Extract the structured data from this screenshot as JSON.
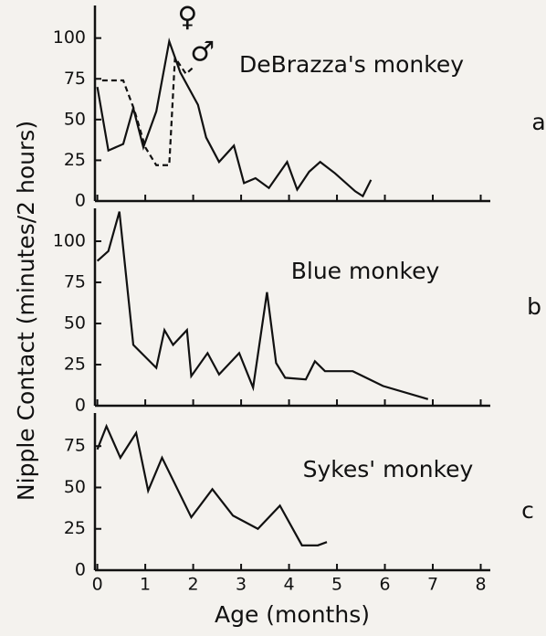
{
  "chart_data": [
    {
      "type": "line",
      "title": "DeBrazza's monkey",
      "panel": "a",
      "xlim": [
        -0.05,
        8.2
      ],
      "xticks": [
        0,
        1,
        2,
        3,
        4,
        5,
        6,
        7,
        8
      ],
      "ylim": [
        0,
        120
      ],
      "yticks": [
        0,
        25,
        50,
        75,
        100
      ],
      "series": [
        {
          "name": "♀",
          "color": "#111",
          "dash": false,
          "x": [
            0,
            0.23,
            0.54,
            0.75,
            0.96,
            1.23,
            1.5,
            1.73,
            2.1,
            2.27,
            2.54,
            2.85,
            3.06,
            3.3,
            3.58,
            3.96,
            4.17,
            4.42,
            4.65,
            4.96,
            5.38,
            5.54,
            5.71
          ],
          "values": [
            70,
            31,
            35,
            57,
            33,
            55,
            98,
            79,
            59,
            39,
            24,
            34,
            11,
            14,
            8,
            24,
            7,
            18,
            24,
            17,
            6,
            3,
            13
          ]
        },
        {
          "name": "♂",
          "color": "#111",
          "dash": true,
          "x": [
            0.1,
            0.54,
            0.77,
            1.0,
            1.23,
            1.5,
            1.62,
            1.85,
            2.0
          ],
          "values": [
            74,
            74,
            56,
            33,
            22,
            22,
            88,
            78,
            82
          ]
        }
      ]
    },
    {
      "type": "line",
      "title": "Blue monkey",
      "panel": "b",
      "ylabel": "Nipple Contact (minutes/2 hours)",
      "xlim": [
        -0.05,
        8.2
      ],
      "xticks": [
        0,
        1,
        2,
        3,
        4,
        5,
        6,
        7,
        8
      ],
      "ylim": [
        0,
        120
      ],
      "yticks": [
        0,
        25,
        50,
        75,
        100
      ],
      "series": [
        {
          "name": null,
          "color": "#111",
          "dash": false,
          "x": [
            0,
            0.23,
            0.46,
            0.75,
            1.23,
            1.4,
            1.58,
            1.87,
            1.96,
            2.3,
            2.54,
            2.96,
            3.25,
            3.54,
            3.73,
            3.92,
            4.35,
            4.54,
            4.75,
            5.33,
            5.96,
            6.9
          ],
          "values": [
            88,
            94,
            118,
            37,
            23,
            46,
            37,
            46,
            18,
            32,
            19,
            32,
            11,
            69,
            26,
            17,
            16,
            27,
            21,
            21,
            12,
            4
          ]
        }
      ]
    },
    {
      "type": "line",
      "title": "Sykes' monkey",
      "panel": "c",
      "xlabel": "Age (months)",
      "xlim": [
        -0.05,
        8.2
      ],
      "xticks": [
        0,
        1,
        2,
        3,
        4,
        5,
        6,
        7,
        8
      ],
      "ylim": [
        0,
        95
      ],
      "yticks": [
        0,
        25,
        50,
        75
      ],
      "series": [
        {
          "name": null,
          "color": "#111",
          "dash": false,
          "x": [
            0,
            0.19,
            0.48,
            0.81,
            1.06,
            1.35,
            1.96,
            2.4,
            2.83,
            3.35,
            3.81,
            4.27,
            4.6,
            4.79
          ],
          "values": [
            73,
            87,
            68,
            83,
            48,
            68,
            32,
            49,
            33,
            25,
            39,
            15,
            15,
            17
          ]
        }
      ]
    }
  ]
}
